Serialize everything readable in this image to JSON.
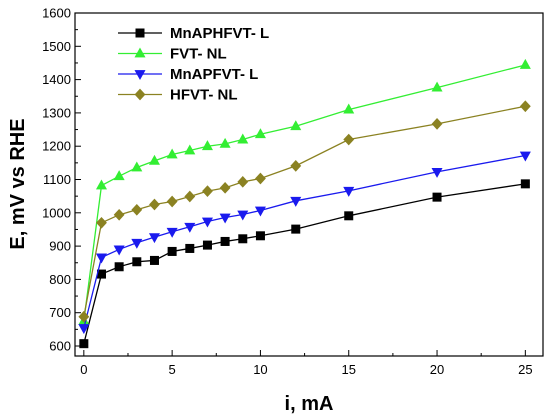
{
  "chart_data": {
    "type": "line",
    "title": "",
    "xlabel": "i, mA",
    "ylabel": "E, mV vs RHE",
    "xlim": [
      -0.5,
      26
    ],
    "ylim": [
      570,
      1600
    ],
    "xticks": [
      0,
      5,
      10,
      15,
      20,
      25
    ],
    "yticks": [
      600,
      700,
      800,
      900,
      1000,
      1100,
      1200,
      1300,
      1400,
      1500,
      1600
    ],
    "grid": false,
    "legend_position": "top-left",
    "series": [
      {
        "name": "MnAPHFVT- L",
        "color": "#000000",
        "marker": "square",
        "x": [
          0,
          1,
          2,
          3,
          4,
          5,
          6,
          7,
          8,
          9,
          10,
          12,
          15,
          20,
          25
        ],
        "y": [
          607,
          816,
          838,
          853,
          857,
          884,
          893,
          903,
          914,
          922,
          931,
          951,
          991,
          1047,
          1087
        ]
      },
      {
        "name": "FVT- NL",
        "color": "#33ee33",
        "marker": "triangle-up",
        "x": [
          0,
          1,
          2,
          3,
          4,
          5,
          6,
          7,
          8,
          9,
          10,
          12,
          15,
          20,
          25
        ],
        "y": [
          675,
          1082,
          1110,
          1136,
          1156,
          1175,
          1187,
          1200,
          1207,
          1220,
          1236,
          1260,
          1310,
          1376,
          1444
        ]
      },
      {
        "name": "MnAPFVT- L",
        "color": "#1a1aee",
        "marker": "triangle-down",
        "x": [
          0,
          1,
          2,
          3,
          4,
          5,
          6,
          7,
          8,
          9,
          10,
          12,
          15,
          20,
          25
        ],
        "y": [
          654,
          866,
          890,
          910,
          927,
          943,
          958,
          974,
          986,
          995,
          1007,
          1036,
          1066,
          1123,
          1172
        ]
      },
      {
        "name": "HFVT- NL",
        "color": "#8b8222",
        "marker": "diamond",
        "x": [
          0,
          1,
          2,
          3,
          4,
          5,
          6,
          7,
          8,
          9,
          10,
          12,
          15,
          20,
          25
        ],
        "y": [
          688,
          970,
          994,
          1009,
          1025,
          1034,
          1049,
          1065,
          1075,
          1093,
          1103,
          1141,
          1220,
          1267,
          1320
        ]
      }
    ]
  }
}
